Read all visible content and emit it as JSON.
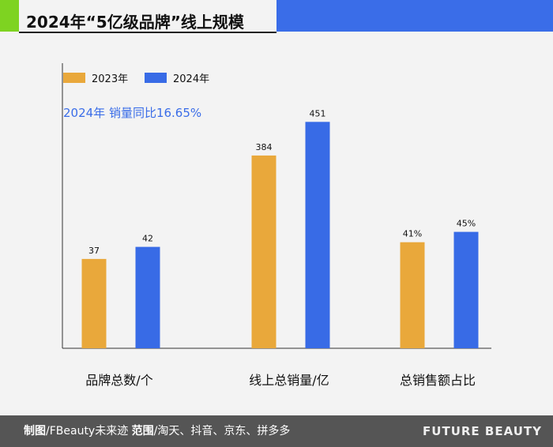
{
  "colors": {
    "accent_green": "#7ed321",
    "header_blue": "#3a6de8",
    "series_2023": "#e9a83b",
    "series_2024": "#386be6",
    "annotation": "#3a6de8"
  },
  "header": {
    "title": "2024年“5亿级品牌”线上规模"
  },
  "annotation": "2024年 销量同比16.65%",
  "chart_data": {
    "type": "bar",
    "categories": [
      "品牌总数/个",
      "线上总销量/亿",
      "总销售额占比"
    ],
    "series": [
      {
        "name": "2023年",
        "values": [
          37,
          384,
          41
        ],
        "labels": [
          "37",
          "384",
          "41%"
        ]
      },
      {
        "name": "2024年",
        "values": [
          42,
          451,
          45
        ],
        "labels": [
          "42",
          "451",
          "45%"
        ]
      }
    ],
    "ylim_per_category": [
      [
        0,
        105
      ],
      [
        0,
        505
      ],
      [
        0,
        98
      ]
    ],
    "grid": false,
    "legend_position": "top-left"
  },
  "footer": {
    "maker_label": "制图",
    "maker_value": "/FBeauty未来迹 ",
    "scope_label": "范围",
    "scope_value": "/淘天、抖音、京东、拼多多",
    "brand": "FUTURE BEAUTY"
  }
}
